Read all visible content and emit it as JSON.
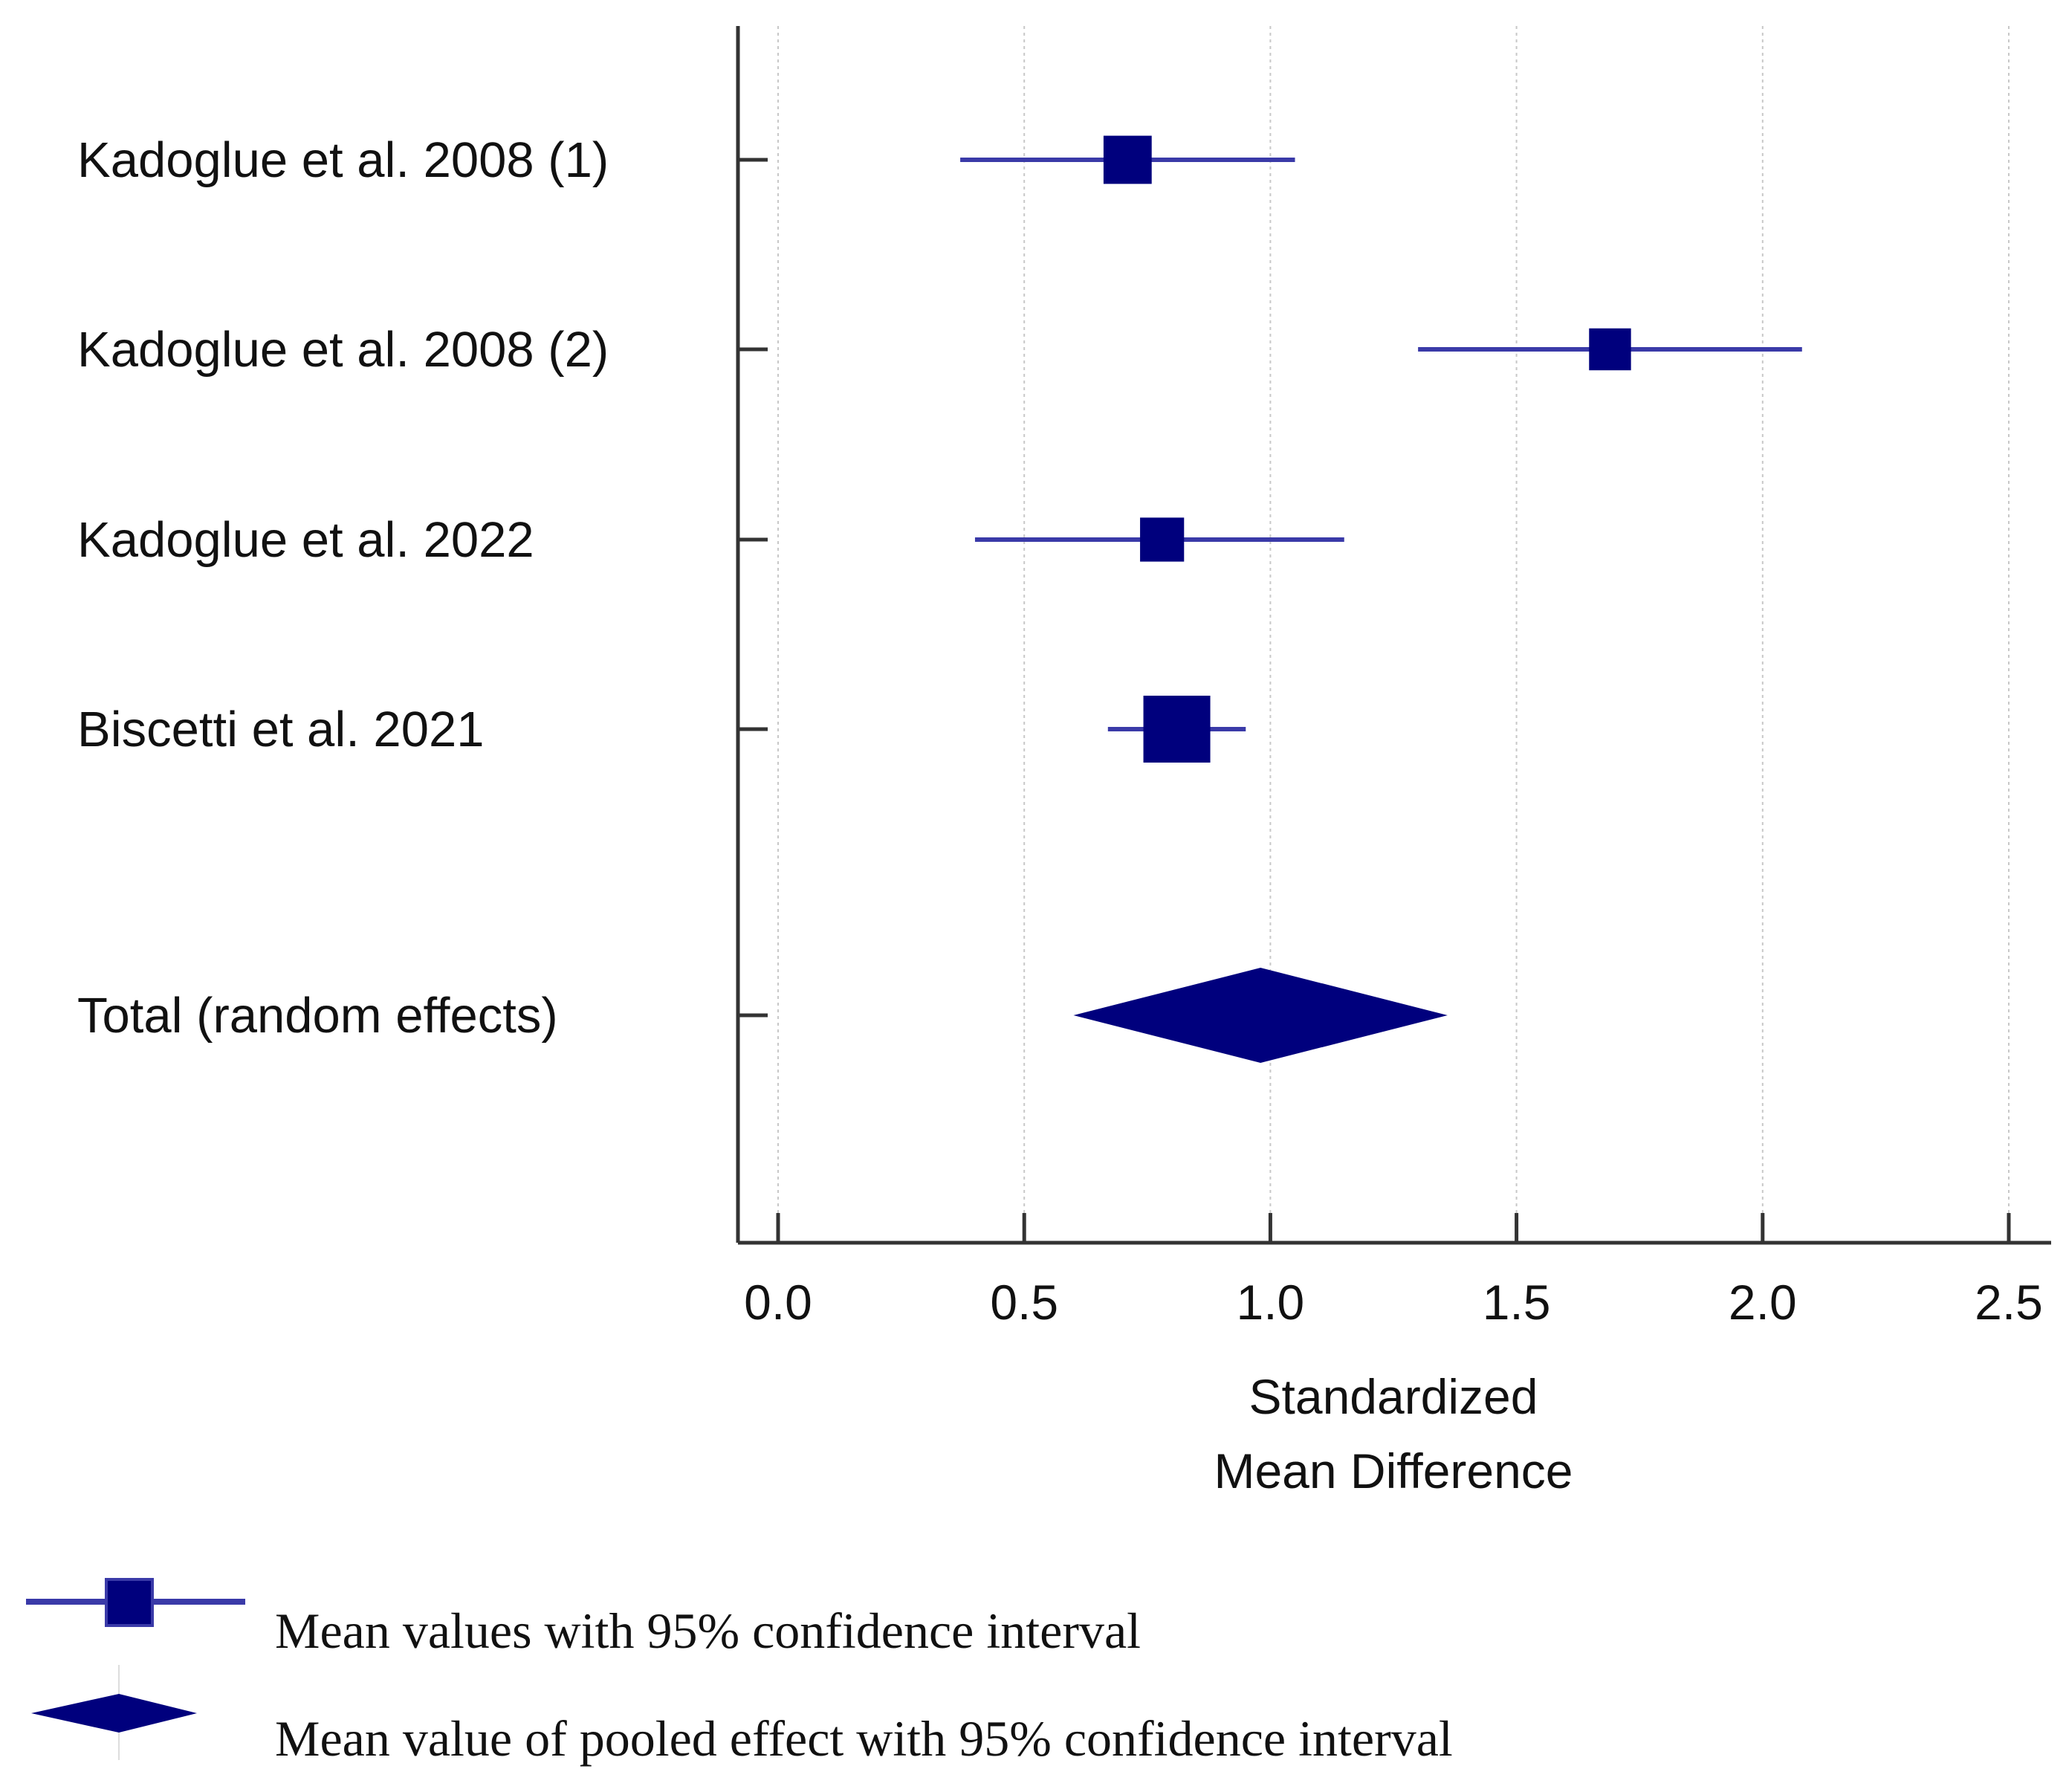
{
  "colors": {
    "marker": "#00007d",
    "ci_line": "#3a3aa8",
    "axis": "#333333",
    "grid": "#c8c8c8",
    "text": "#111111"
  },
  "chart_data": {
    "type": "forest",
    "xlabel_lines": [
      "Standardized",
      "Mean Difference"
    ],
    "xlim": [
      -0.08,
      2.58
    ],
    "xticks": [
      0.0,
      0.5,
      1.0,
      1.5,
      2.0,
      2.5
    ],
    "xtick_labels": [
      "0.0",
      "0.5",
      "1.0",
      "1.5",
      "2.0",
      "2.5"
    ],
    "grid": true,
    "studies": [
      {
        "label": "Kadoglue et al. 2008 (1)",
        "mean": 0.71,
        "ci_low": 0.37,
        "ci_high": 1.05,
        "weight": 0.55
      },
      {
        "label": "Kadoglue et al. 2008 (2)",
        "mean": 1.69,
        "ci_low": 1.3,
        "ci_high": 2.08,
        "weight": 0.4
      },
      {
        "label": "Kadoglue et al. 2022",
        "mean": 0.78,
        "ci_low": 0.4,
        "ci_high": 1.15,
        "weight": 0.45
      },
      {
        "label": "Biscetti et al. 2021",
        "mean": 0.81,
        "ci_low": 0.67,
        "ci_high": 0.95,
        "weight": 1.0
      }
    ],
    "pooled": {
      "label": "Total (random effects)",
      "mean": 0.98,
      "ci_low": 0.6,
      "ci_high": 1.36
    }
  },
  "legend": {
    "items": [
      {
        "symbol": "square-with-ci",
        "text": "Mean values with 95% confidence interval"
      },
      {
        "symbol": "diamond",
        "text": "Mean value of pooled effect with 95% confidence interval"
      }
    ]
  }
}
